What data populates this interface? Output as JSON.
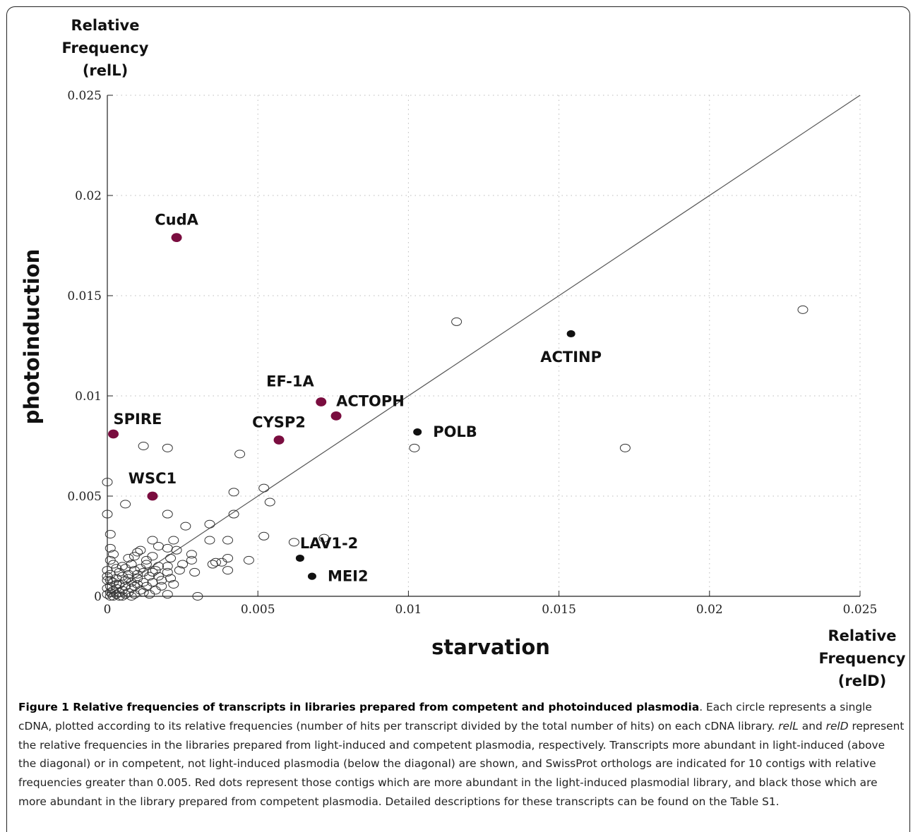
{
  "ylabel_top": [
    "Relative",
    "Frequency",
    "(relL)"
  ],
  "ylabel": "photoinduction",
  "xlabel": "starvation",
  "xlabel_corner": [
    "Relative",
    "Frequency",
    "(relD)"
  ],
  "caption": {
    "title": "Figure 1 Relative frequencies of transcripts in libraries prepared from competent and photoinduced plasmodia",
    "part1": ". Each circle represents a single cDNA, plotted according to its relative frequencies (number of hits per transcript divided by the total number of hits) on each cDNA library. ",
    "em1": "relL",
    "part2": " and ",
    "em2": "relD",
    "part3": " represent the relative frequencies in the libraries prepared from light-induced and competent plasmodia, respectively. Transcripts more abundant in light-induced (above the diagonal) or in competent, not light-induced plasmodia (below the diagonal) are shown, and SwissProt orthologs are indicated for 10 contigs with relative frequencies greater than 0.005. Red dots represent those contigs which are more abundant in the light-induced plasmodial library, and black those which are more abundant in the library prepared from competent plasmodia. Detailed descriptions for these transcripts can be found on the Table S1."
  },
  "colors": {
    "red_dot": "#7a0d3f",
    "black_dot": "#111111",
    "open_circle": "#333333",
    "diagonal": "#555555",
    "grid": "#bbbbbb"
  },
  "chart_data": {
    "type": "scatter",
    "xlim": [
      0,
      0.025
    ],
    "ylim": [
      0,
      0.025
    ],
    "x_ticks": [
      "0",
      "0.005",
      "0.01",
      "0.015",
      "0.02",
      "0.025"
    ],
    "y_ticks": [
      "0",
      "0.005",
      "0.01",
      "0.015",
      "0.02",
      "0.025"
    ],
    "x_tick_values": [
      0,
      0.005,
      0.01,
      0.015,
      0.02,
      0.025
    ],
    "y_tick_values": [
      0,
      0.005,
      0.01,
      0.015,
      0.02,
      0.025
    ],
    "grid": true,
    "diagonal": [
      [
        0,
        0
      ],
      [
        0.025,
        0.025
      ]
    ],
    "labeled_points": [
      {
        "label": "CudA",
        "x": 0.0023,
        "y": 0.0179,
        "group": "red",
        "label_pos": "above"
      },
      {
        "label": "SPIRE",
        "x": 0.0002,
        "y": 0.0081,
        "group": "red",
        "label_pos": "above-right"
      },
      {
        "label": "WSC1",
        "x": 0.0015,
        "y": 0.005,
        "group": "red",
        "label_pos": "above"
      },
      {
        "label": "CYSP2",
        "x": 0.0057,
        "y": 0.0078,
        "group": "red",
        "label_pos": "above"
      },
      {
        "label": "EF-1A",
        "x": 0.0071,
        "y": 0.0097,
        "group": "red",
        "label_pos": "above-left"
      },
      {
        "label": "ACTOPH",
        "x": 0.0076,
        "y": 0.009,
        "group": "red",
        "label_pos": "above-right"
      },
      {
        "label": "POLB",
        "x": 0.0103,
        "y": 0.0082,
        "group": "black",
        "label_pos": "right"
      },
      {
        "label": "ACTINP",
        "x": 0.0154,
        "y": 0.0131,
        "group": "black",
        "label_pos": "below"
      },
      {
        "label": "LAV1-2",
        "x": 0.0064,
        "y": 0.0019,
        "group": "black",
        "label_pos": "above-right"
      },
      {
        "label": "MEI2",
        "x": 0.0068,
        "y": 0.001,
        "group": "black",
        "label_pos": "right"
      }
    ],
    "open_points": [
      [
        0.0116,
        0.0137
      ],
      [
        0.0231,
        0.0143
      ],
      [
        0.0172,
        0.0074
      ],
      [
        0.0102,
        0.0074
      ],
      [
        0.0012,
        0.0075
      ],
      [
        0.002,
        0.0074
      ],
      [
        0.0044,
        0.0071
      ],
      [
        0.0042,
        0.0052
      ],
      [
        0.0052,
        0.0054
      ],
      [
        0.0054,
        0.0047
      ],
      [
        0.0,
        0.0057
      ],
      [
        0.0006,
        0.0046
      ],
      [
        0.002,
        0.0041
      ],
      [
        0.0042,
        0.0041
      ],
      [
        0.0,
        0.0041
      ],
      [
        0.0034,
        0.0036
      ],
      [
        0.0026,
        0.0035
      ],
      [
        0.0001,
        0.0031
      ],
      [
        0.0052,
        0.003
      ],
      [
        0.0072,
        0.0029
      ],
      [
        0.0062,
        0.0027
      ],
      [
        0.0034,
        0.0028
      ],
      [
        0.004,
        0.0028
      ],
      [
        0.0015,
        0.0028
      ],
      [
        0.0022,
        0.0028
      ],
      [
        0.0017,
        0.0025
      ],
      [
        0.002,
        0.0024
      ],
      [
        0.0023,
        0.0023
      ],
      [
        0.0001,
        0.0024
      ],
      [
        0.0011,
        0.0023
      ],
      [
        0.0028,
        0.0021
      ],
      [
        0.0002,
        0.0021
      ],
      [
        0.001,
        0.0022
      ],
      [
        0.0047,
        0.0018
      ],
      [
        0.004,
        0.0019
      ],
      [
        0.0038,
        0.0017
      ],
      [
        0.0035,
        0.0016
      ],
      [
        0.0036,
        0.0017
      ],
      [
        0.0028,
        0.0018
      ],
      [
        0.0021,
        0.0019
      ],
      [
        0.0015,
        0.002
      ],
      [
        0.0025,
        0.0016
      ],
      [
        0.0013,
        0.0018
      ],
      [
        0.0007,
        0.0019
      ],
      [
        0.0001,
        0.0018
      ],
      [
        0.0017,
        0.0015
      ],
      [
        0.002,
        0.0015
      ],
      [
        0.0005,
        0.0015
      ],
      [
        0.0002,
        0.0016
      ],
      [
        0.004,
        0.0013
      ],
      [
        0.0024,
        0.0013
      ],
      [
        0.0029,
        0.0012
      ],
      [
        0.002,
        0.0012
      ],
      [
        0.0012,
        0.0012
      ],
      [
        0.0009,
        0.0013
      ],
      [
        0.0004,
        0.0012
      ],
      [
        0.0,
        0.0013
      ],
      [
        0.0001,
        0.0011
      ],
      [
        0.0007,
        0.0011
      ],
      [
        0.0014,
        0.001
      ],
      [
        0.0017,
        0.001
      ],
      [
        0.0021,
        0.0009
      ],
      [
        0.001,
        0.0009
      ],
      [
        0.0003,
        0.0009
      ],
      [
        0.0006,
        0.0008
      ],
      [
        0.0,
        0.0008
      ],
      [
        0.0002,
        0.0007
      ],
      [
        0.0012,
        0.0007
      ],
      [
        0.0015,
        0.0007
      ],
      [
        0.0008,
        0.0007
      ],
      [
        0.0004,
        0.0006
      ],
      [
        0.001,
        0.0006
      ],
      [
        0.0001,
        0.0005
      ],
      [
        0.0006,
        0.0005
      ],
      [
        0.0013,
        0.0005
      ],
      [
        0.0003,
        0.0004
      ],
      [
        0.0008,
        0.0004
      ],
      [
        0.0,
        0.0004
      ],
      [
        0.0005,
        0.0003
      ],
      [
        0.0011,
        0.0003
      ],
      [
        0.0002,
        0.0003
      ],
      [
        0.0007,
        0.0002
      ],
      [
        0.0004,
        0.0002
      ],
      [
        0.0001,
        0.0002
      ],
      [
        0.0009,
        0.0001
      ],
      [
        0.0014,
        0.0001
      ],
      [
        0.002,
        0.0001
      ],
      [
        0.003,
        0.0
      ],
      [
        0.0003,
        0.0001
      ],
      [
        0.0006,
        0.0001
      ],
      [
        0.0,
        0.0001
      ],
      [
        0.0002,
        0.0
      ],
      [
        0.0005,
        0.0
      ],
      [
        0.0008,
        0.0
      ],
      [
        0.0001,
        0.0
      ],
      [
        0.0004,
        0.0
      ],
      [
        0.0016,
        0.0003
      ],
      [
        0.0018,
        0.0005
      ],
      [
        0.0011,
        0.0014
      ],
      [
        0.0013,
        0.0016
      ],
      [
        0.0008,
        0.0016
      ],
      [
        0.0009,
        0.002
      ],
      [
        0.0006,
        0.0014
      ],
      [
        0.0003,
        0.0014
      ],
      [
        0.0,
        0.001
      ],
      [
        0.0015,
        0.0012
      ],
      [
        0.0018,
        0.0008
      ],
      [
        0.0022,
        0.0006
      ],
      [
        0.0012,
        0.0002
      ],
      [
        0.001,
        0.0011
      ],
      [
        0.0007,
        0.0009
      ],
      [
        0.0005,
        0.001
      ],
      [
        0.0003,
        0.0006
      ],
      [
        0.0001,
        0.0008
      ],
      [
        0.0009,
        0.0005
      ],
      [
        0.0016,
        0.0013
      ]
    ]
  }
}
